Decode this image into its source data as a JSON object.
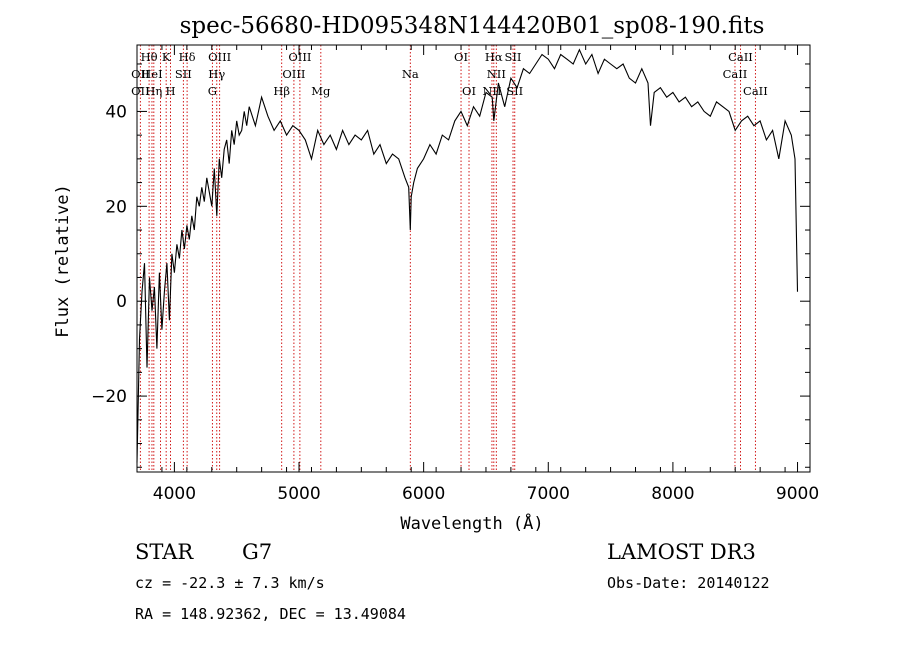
{
  "chart_data": {
    "type": "line",
    "title": "spec-56680-HD095348N144420B01_sp08-190.fits",
    "xlabel": "Wavelength (Å)",
    "ylabel": "Flux (relative)",
    "xlim": [
      3700,
      9100
    ],
    "ylim": [
      -36,
      54
    ],
    "xticks": [
      4000,
      5000,
      6000,
      7000,
      8000,
      9000
    ],
    "yticks": [
      -20,
      0,
      20,
      40
    ],
    "grid": false,
    "series": [
      {
        "color": "#000000",
        "x": [
          3700,
          3720,
          3740,
          3760,
          3780,
          3800,
          3820,
          3840,
          3860,
          3880,
          3900,
          3920,
          3940,
          3960,
          3980,
          4000,
          4020,
          4040,
          4060,
          4080,
          4100,
          4120,
          4140,
          4160,
          4180,
          4200,
          4220,
          4240,
          4260,
          4280,
          4300,
          4320,
          4340,
          4360,
          4380,
          4400,
          4420,
          4440,
          4460,
          4480,
          4500,
          4520,
          4540,
          4560,
          4580,
          4600,
          4650,
          4700,
          4750,
          4800,
          4850,
          4900,
          4950,
          5000,
          5050,
          5100,
          5150,
          5200,
          5250,
          5300,
          5350,
          5400,
          5450,
          5500,
          5550,
          5600,
          5650,
          5700,
          5750,
          5800,
          5850,
          5880,
          5893,
          5900,
          5920,
          5950,
          6000,
          6050,
          6100,
          6150,
          6200,
          6250,
          6300,
          6350,
          6400,
          6450,
          6500,
          6550,
          6563,
          6600,
          6650,
          6700,
          6750,
          6800,
          6850,
          6900,
          6950,
          7000,
          7050,
          7100,
          7150,
          7200,
          7250,
          7300,
          7350,
          7400,
          7450,
          7500,
          7550,
          7600,
          7650,
          7700,
          7750,
          7800,
          7820,
          7850,
          7900,
          7950,
          8000,
          8050,
          8100,
          8150,
          8200,
          8250,
          8300,
          8350,
          8400,
          8450,
          8500,
          8550,
          8600,
          8650,
          8700,
          8750,
          8800,
          8850,
          8900,
          8950,
          8980,
          9000
        ],
        "y": [
          -34,
          -8,
          2,
          8,
          -14,
          5,
          -2,
          3,
          -10,
          6,
          -6,
          2,
          8,
          -4,
          10,
          6,
          12,
          9,
          15,
          11,
          16,
          13,
          18,
          15,
          22,
          20,
          24,
          21,
          26,
          23,
          20,
          28,
          18,
          30,
          26,
          32,
          34,
          29,
          36,
          33,
          38,
          35,
          36,
          40,
          37,
          41,
          37,
          43,
          39,
          36,
          38,
          35,
          37,
          36,
          34,
          30,
          36,
          33,
          35,
          32,
          36,
          33,
          35,
          34,
          36,
          31,
          33,
          29,
          31,
          30,
          26,
          24,
          15,
          22,
          25,
          28,
          30,
          33,
          31,
          35,
          34,
          38,
          40,
          37,
          41,
          39,
          44,
          43,
          38,
          46,
          41,
          47,
          45,
          49,
          48,
          50,
          52,
          51,
          49,
          52,
          51,
          50,
          53,
          50,
          52,
          48,
          51,
          50,
          49,
          50,
          47,
          46,
          49,
          46,
          37,
          44,
          45,
          43,
          44,
          42,
          43,
          41,
          42,
          40,
          39,
          42,
          41,
          40,
          36,
          38,
          39,
          37,
          38,
          34,
          36,
          30,
          38,
          35,
          30,
          2
        ]
      }
    ],
    "annotations": [
      {
        "label": "OII",
        "x": 3727,
        "row": 2
      },
      {
        "label": "OII",
        "x": 3727,
        "row": 3
      },
      {
        "label": "Hθ",
        "x": 3797,
        "row": 1
      },
      {
        "label": "HeI",
        "x": 3820,
        "row": 2
      },
      {
        "label": "Hη",
        "x": 3835,
        "row": 3
      },
      {
        "label": "K",
        "x": 3934,
        "row": 1
      },
      {
        "label": "SII",
        "x": 4072,
        "row": 2
      },
      {
        "label": "H",
        "x": 3969,
        "row": 3
      },
      {
        "label": "Hδ",
        "x": 4102,
        "row": 1
      },
      {
        "label": "OIII",
        "x": 4363,
        "row": 1
      },
      {
        "label": "Hγ",
        "x": 4340,
        "row": 2
      },
      {
        "label": "G",
        "x": 4305,
        "row": 3
      },
      {
        "label": "OIII",
        "x": 5007,
        "row": 1
      },
      {
        "label": "OIII",
        "x": 4959,
        "row": 2
      },
      {
        "label": "Hβ",
        "x": 4861,
        "row": 3
      },
      {
        "label": "Mg",
        "x": 5175,
        "row": 3
      },
      {
        "label": "Na",
        "x": 5893,
        "row": 2
      },
      {
        "label": "OI",
        "x": 6300,
        "row": 1
      },
      {
        "label": "OI",
        "x": 6364,
        "row": 3
      },
      {
        "label": "Hα",
        "x": 6563,
        "row": 1
      },
      {
        "label": "SII",
        "x": 6717,
        "row": 1
      },
      {
        "label": "NII",
        "x": 6583,
        "row": 2
      },
      {
        "label": "NII",
        "x": 6548,
        "row": 3
      },
      {
        "label": "SII",
        "x": 6731,
        "row": 3
      },
      {
        "label": "CaII",
        "x": 8542,
        "row": 1
      },
      {
        "label": "CaII",
        "x": 8498,
        "row": 2
      },
      {
        "label": "CaII",
        "x": 8662,
        "row": 3
      }
    ],
    "reference_lines_x": [
      3727,
      3797,
      3820,
      3835,
      3889,
      3934,
      3969,
      4072,
      4102,
      4305,
      4340,
      4363,
      4861,
      4959,
      5007,
      5175,
      5893,
      6300,
      6364,
      6548,
      6563,
      6583,
      6717,
      6731,
      8498,
      8542,
      8662
    ]
  },
  "info": {
    "object_class": "STAR",
    "subclass": "G7",
    "survey": "LAMOST DR3",
    "redshift": "cz = -22.3 ± 7.3 km/s",
    "obs_date": "Obs-Date: 20140122",
    "coords": "RA = 148.92362, DEC =  13.49084"
  },
  "colors": {
    "spectrum": "#000000",
    "reference_line": "#cc0000",
    "background": "#ffffff"
  }
}
